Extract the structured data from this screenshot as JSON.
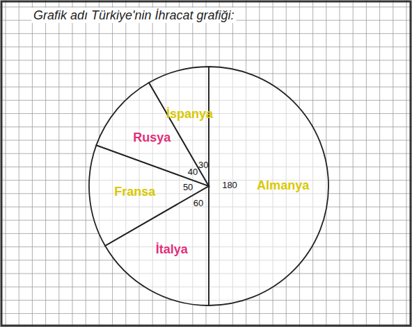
{
  "chart_data": {
    "type": "pie",
    "title": "Grafik adı Türkiye'nin İhracat grafiği:",
    "categories": [
      "Almanya",
      "İtalya",
      "Fransa",
      "Rusya",
      "İspanya"
    ],
    "values": [
      180,
      60,
      50,
      40,
      30
    ],
    "colors": [
      "#d9c800",
      "#e0307a",
      "#d9c800",
      "#e0307a",
      "#d9c800"
    ],
    "data_labels": true
  }
}
